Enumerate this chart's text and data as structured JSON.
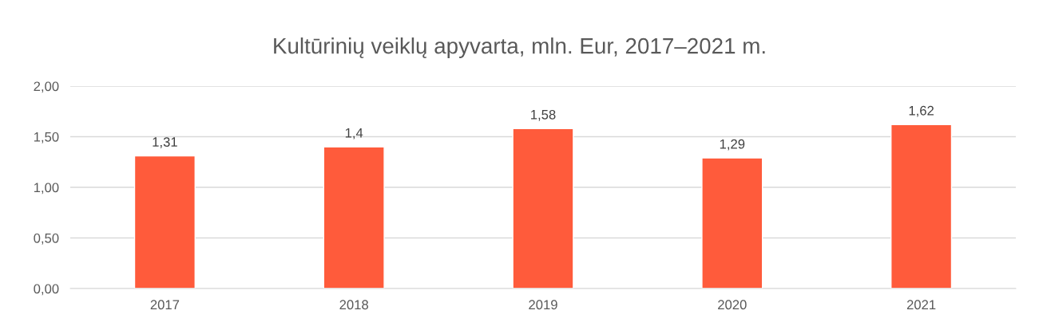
{
  "chart_data": {
    "type": "bar",
    "title": "Kultūrinių veiklų apyvarta, mln. Eur, 2017–2021 m.",
    "categories": [
      "2017",
      "2018",
      "2019",
      "2020",
      "2021"
    ],
    "values": [
      1.31,
      1.4,
      1.58,
      1.29,
      1.62
    ],
    "value_labels": [
      "1,31",
      "1,4",
      "1,58",
      "1,29",
      "1,62"
    ],
    "color": "#ff5b3b",
    "ylim": [
      0,
      2
    ],
    "yticks": [
      {
        "value": 0,
        "label": "0,00"
      },
      {
        "value": 0.5,
        "label": "0,50"
      },
      {
        "value": 1,
        "label": "1,00"
      },
      {
        "value": 1.5,
        "label": "1,50"
      },
      {
        "value": 2,
        "label": "2,00"
      }
    ],
    "grid": "y",
    "legend": false
  }
}
